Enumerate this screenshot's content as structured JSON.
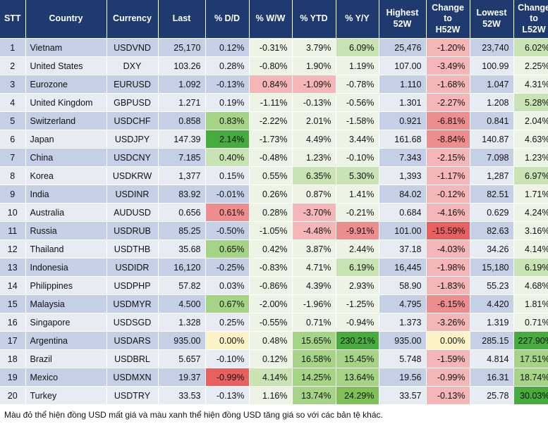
{
  "headers": {
    "stt": "STT",
    "country": "Country",
    "currency": "Currency",
    "last": "Last",
    "dd": "% D/D",
    "ww": "% W/W",
    "ytd": "% YTD",
    "yy": "% Y/Y",
    "high_l1": "Highest",
    "high_l2": "52W",
    "ch_l1": "Change",
    "ch_l2": "to",
    "ch_l3": "H52W",
    "low_l1": "Lowest",
    "low_l2": "52W",
    "cl_l1": "Change",
    "cl_l2": "to",
    "cl_l3": "L52W"
  },
  "rows": [
    {
      "stt": "1",
      "country": "Vietnam",
      "currency": "USDVND",
      "last": "25,170",
      "dd": "0.12%",
      "ww": "-0.31%",
      "ytd": "3.79%",
      "yy": "6.09%",
      "high": "25,476",
      "ch": "-1.20%",
      "low": "23,740",
      "cl": "6.02%"
    },
    {
      "stt": "2",
      "country": "United States",
      "currency": "DXY",
      "last": "103.26",
      "dd": "0.28%",
      "ww": "-0.80%",
      "ytd": "1.90%",
      "yy": "1.19%",
      "high": "107.00",
      "ch": "-3.49%",
      "low": "100.99",
      "cl": "2.25%"
    },
    {
      "stt": "3",
      "country": "Eurozone",
      "currency": "EURUSD",
      "last": "1.092",
      "dd": "-0.13%",
      "ww": "0.84%",
      "ytd": "-1.09%",
      "yy": "-0.78%",
      "high": "1.110",
      "ch": "-1.68%",
      "low": "1.047",
      "cl": "4.31%"
    },
    {
      "stt": "4",
      "country": "United Kingdom",
      "currency": "GBPUSD",
      "last": "1.271",
      "dd": "0.19%",
      "ww": "-1.11%",
      "ytd": "-0.13%",
      "yy": "-0.56%",
      "high": "1.301",
      "ch": "-2.27%",
      "low": "1.208",
      "cl": "5.28%"
    },
    {
      "stt": "5",
      "country": "Switzerland",
      "currency": "USDCHF",
      "last": "0.858",
      "dd": "0.83%",
      "ww": "-2.22%",
      "ytd": "2.01%",
      "yy": "-1.58%",
      "high": "0.921",
      "ch": "-6.81%",
      "low": "0.841",
      "cl": "2.04%"
    },
    {
      "stt": "6",
      "country": "Japan",
      "currency": "USDJPY",
      "last": "147.39",
      "dd": "2.14%",
      "ww": "-1.73%",
      "ytd": "4.49%",
      "yy": "3.44%",
      "high": "161.68",
      "ch": "-8.84%",
      "low": "140.87",
      "cl": "4.63%"
    },
    {
      "stt": "7",
      "country": "China",
      "currency": "USDCNY",
      "last": "7.185",
      "dd": "0.40%",
      "ww": "-0.48%",
      "ytd": "1.23%",
      "yy": "-0.10%",
      "high": "7.343",
      "ch": "-2.15%",
      "low": "7.098",
      "cl": "1.23%"
    },
    {
      "stt": "8",
      "country": "Korea",
      "currency": "USDKRW",
      "last": "1,377",
      "dd": "0.15%",
      "ww": "0.55%",
      "ytd": "6.35%",
      "yy": "5.30%",
      "high": "1,393",
      "ch": "-1.17%",
      "low": "1,287",
      "cl": "6.97%"
    },
    {
      "stt": "9",
      "country": "India",
      "currency": "USDINR",
      "last": "83.92",
      "dd": "-0.01%",
      "ww": "0.26%",
      "ytd": "0.87%",
      "yy": "1.41%",
      "high": "84.02",
      "ch": "-0.12%",
      "low": "82.51",
      "cl": "1.71%"
    },
    {
      "stt": "10",
      "country": "Australia",
      "currency": "AUDUSD",
      "last": "0.656",
      "dd": "0.61%",
      "ww": "0.28%",
      "ytd": "-3.70%",
      "yy": "-0.21%",
      "high": "0.684",
      "ch": "-4.16%",
      "low": "0.629",
      "cl": "4.24%"
    },
    {
      "stt": "11",
      "country": "Russia",
      "currency": "USDRUB",
      "last": "85.25",
      "dd": "-0.50%",
      "ww": "-1.05%",
      "ytd": "-4.48%",
      "yy": "-9.91%",
      "high": "101.00",
      "ch": "-15.59%",
      "low": "82.63",
      "cl": "3.16%"
    },
    {
      "stt": "12",
      "country": "Thailand",
      "currency": "USDTHB",
      "last": "35.68",
      "dd": "0.65%",
      "ww": "0.42%",
      "ytd": "3.87%",
      "yy": "2.44%",
      "high": "37.18",
      "ch": "-4.03%",
      "low": "34.26",
      "cl": "4.14%"
    },
    {
      "stt": "13",
      "country": "Indonesia",
      "currency": "USDIDR",
      "last": "16,120",
      "dd": "-0.25%",
      "ww": "-0.83%",
      "ytd": "4.71%",
      "yy": "6.19%",
      "high": "16,445",
      "ch": "-1.98%",
      "low": "15,180",
      "cl": "6.19%"
    },
    {
      "stt": "14",
      "country": "Philippines",
      "currency": "USDPHP",
      "last": "57.82",
      "dd": "0.03%",
      "ww": "-0.86%",
      "ytd": "4.39%",
      "yy": "2.93%",
      "high": "58.90",
      "ch": "-1.83%",
      "low": "55.23",
      "cl": "4.68%"
    },
    {
      "stt": "15",
      "country": "Malaysia",
      "currency": "USDMYR",
      "last": "4.500",
      "dd": "0.67%",
      "ww": "-2.00%",
      "ytd": "-1.96%",
      "yy": "-1.25%",
      "high": "4.795",
      "ch": "-6.15%",
      "low": "4.420",
      "cl": "1.81%"
    },
    {
      "stt": "16",
      "country": "Singapore",
      "currency": "USDSGD",
      "last": "1.328",
      "dd": "0.25%",
      "ww": "-0.55%",
      "ytd": "0.71%",
      "yy": "-0.94%",
      "high": "1.373",
      "ch": "-3.26%",
      "low": "1.319",
      "cl": "0.71%"
    },
    {
      "stt": "17",
      "country": "Argentina",
      "currency": "USDARS",
      "last": "935.00",
      "dd": "0.00%",
      "ww": "0.48%",
      "ytd": "15.65%",
      "yy": "230.21%",
      "high": "935.00",
      "ch": "0.00%",
      "low": "285.15",
      "cl": "227.90%"
    },
    {
      "stt": "18",
      "country": "Brazil",
      "currency": "USDBRL",
      "last": "5.657",
      "dd": "-0.10%",
      "ww": "0.12%",
      "ytd": "16.58%",
      "yy": "15.45%",
      "high": "5.748",
      "ch": "-1.59%",
      "low": "4.814",
      "cl": "17.51%"
    },
    {
      "stt": "19",
      "country": "Mexico",
      "currency": "USDMXN",
      "last": "19.37",
      "dd": "-0.99%",
      "ww": "4.14%",
      "ytd": "14.25%",
      "yy": "13.64%",
      "high": "19.56",
      "ch": "-0.99%",
      "low": "16.31",
      "cl": "18.74%"
    },
    {
      "stt": "20",
      "country": "Turkey",
      "currency": "USDTRY",
      "last": "33.53",
      "dd": "-0.13%",
      "ww": "1.16%",
      "ytd": "13.74%",
      "yy": "24.29%",
      "high": "33.57",
      "ch": "-0.13%",
      "low": "25.78",
      "cl": "30.03%"
    }
  ],
  "colors": {
    "header_bg": "#1f3a6e",
    "row_odd": "#c5d0e6",
    "row_even": "#e7ebf4",
    "red_light": "#f4b6b6",
    "red_mid": "#ee8d8d",
    "red_strong": "#e86060",
    "green_light": "#c8e3b4",
    "green_mid": "#a6d486",
    "green_strong": "#7fc158",
    "green_max": "#46ac3e"
  },
  "footnote": "Màu đỏ thể hiện đồng USD mất giá và màu xanh thể hiện đồng USD tăng giá so với các bản tệ khác."
}
